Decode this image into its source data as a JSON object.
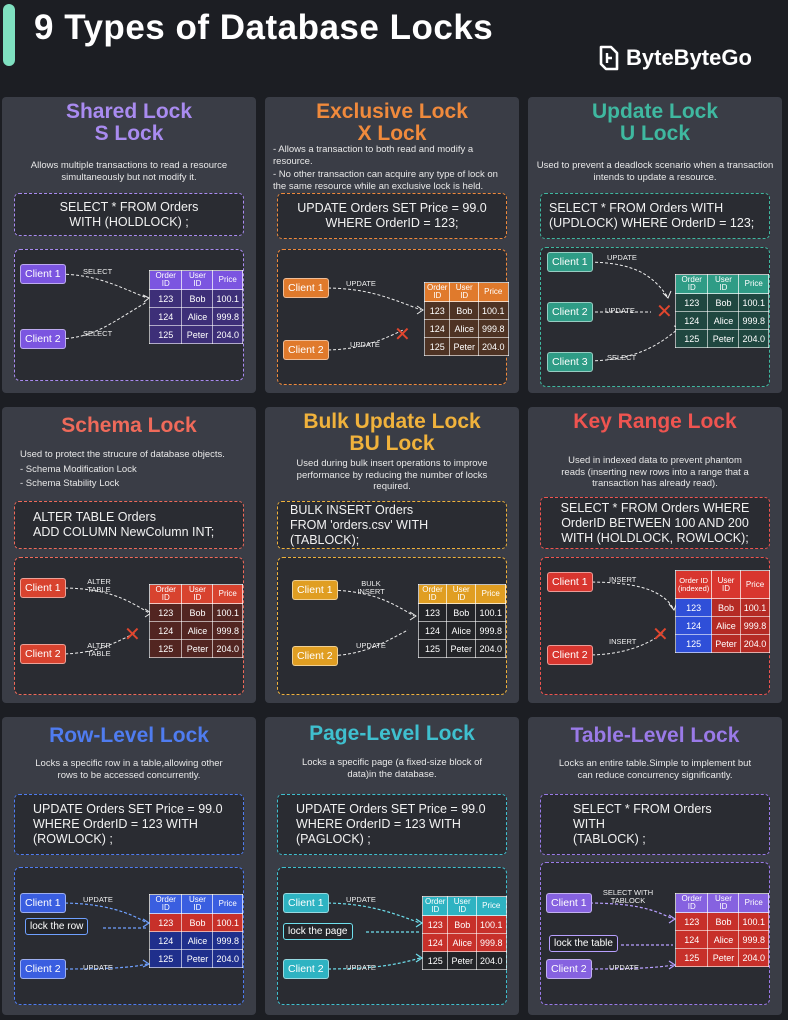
{
  "title": "9 Types of Database Locks",
  "brand": "ByteByteGo",
  "table": {
    "headers": [
      "Order ID",
      "User ID",
      "Price"
    ],
    "rows": [
      [
        "123",
        "Bob",
        "100.1"
      ],
      [
        "124",
        "Alice",
        "999.8"
      ],
      [
        "125",
        "Peter",
        "204.0"
      ]
    ]
  },
  "keyrange_header": "Order ID (indexed)",
  "cards": {
    "shared": {
      "title1": "Shared Lock",
      "title2": "S Lock",
      "desc": "Allows multiple transactions to read a resource simultaneously but not modify it.",
      "code1": "SELECT * FROM Orders",
      "code2": "WITH (HOLDLOCK) ;",
      "client1": "Client 1",
      "client2": "Client 2",
      "act1": "SELECT",
      "act2": "SELECT"
    },
    "exclusive": {
      "title1": "Exclusive Lock",
      "title2": "X Lock",
      "desc1": "- Allows a transaction to both read and modify a resource.",
      "desc2": "- No other transaction can acquire any type of lock on the same resource while an exclusive lock is held.",
      "code1": "UPDATE Orders SET Price = 99.0",
      "code2": "WHERE OrderID = 123;",
      "client1": "Client 1",
      "client2": "Client 2",
      "act1": "UPDATE",
      "act2": "UPDATE"
    },
    "update": {
      "title1": "Update Lock",
      "title2": "U Lock",
      "desc": "Used to prevent a deadlock scenario when a transaction intends to update a resource.",
      "code1": "SELECT * FROM Orders WITH",
      "code2": "(UPDLOCK) WHERE OrderID = 123;",
      "client1": "Client 1",
      "client2": "Client 2",
      "client3": "Client 3",
      "act1": "UPDATE",
      "act2": "UPDATE",
      "act3": "SELECT"
    },
    "schema": {
      "title1": "Schema Lock",
      "desc1": "Used to protect the strucure of database objects.",
      "desc2": "- Schema Modification Lock",
      "desc3": "- Schema Stability Lock",
      "code1": "ALTER TABLE Orders",
      "code2": "ADD COLUMN NewColumn INT;",
      "client1": "Client 1",
      "client2": "Client 2",
      "act1": "ALTER TABLE",
      "act2": "ALTER TABLE"
    },
    "bulk": {
      "title1": "Bulk Update Lock",
      "title2": "BU Lock",
      "desc": "Used during bulk insert operations to improve performance by reducing the number of locks required.",
      "code1": "BULK INSERT Orders",
      "code2": "FROM 'orders.csv' WITH (TABLOCK);",
      "client1": "Client 1",
      "client2": "Client 2",
      "act1": "BULK INSERT",
      "act2": "UPDATE"
    },
    "keyrange": {
      "title1": "Key Range Lock",
      "desc": "Used in indexed data to prevent phantom reads (inserting new rows into a range that a transaction has already read).",
      "code1": "SELECT * FROM Orders WHERE",
      "code2": "OrderID BETWEEN 100 AND 200",
      "code3": "WITH (HOLDLOCK, ROWLOCK);",
      "client1": "Client 1",
      "client2": "Client 2",
      "act1": "INSERT",
      "act2": "INSERT"
    },
    "row": {
      "title1": "Row-Level Lock",
      "desc": "Locks a specific row in a table,allowing other rows to be accessed concurrently.",
      "code1": "UPDATE Orders SET Price = 99.0",
      "code2": "WHERE OrderID = 123 WITH",
      "code3": "(ROWLOCK) ;",
      "client1": "Client 1",
      "client2": "Client 2",
      "act1": "UPDATE",
      "act2": "UPDATE",
      "lock": "lock the row"
    },
    "page": {
      "title1": "Page-Level Lock",
      "desc": "Locks a specific page (a fixed-size block of data)in the database.",
      "code1": "UPDATE Orders SET Price = 99.0",
      "code2": "WHERE OrderID = 123 WITH",
      "code3": "(PAGLOCK) ;",
      "client1": "Client 1",
      "client2": "Client 2",
      "act1": "UPDATE",
      "act2": "UPDATE",
      "lock": "lock the page"
    },
    "tablelvl": {
      "title1": "Table-Level Lock",
      "desc": "Locks an entire table.Simple to implement but can reduce concurrency significantly.",
      "code1": "SELECT * FROM Orders WITH",
      "code2": "(TABLOCK) ;",
      "client1": "Client 1",
      "client2": "Client 2",
      "act1": "SELECT WITH TABLOCK",
      "act2": "UPDATE",
      "lock": "lock the table"
    }
  },
  "colors": {
    "shared": "#a98bf0",
    "exclusive": "#f08a3c",
    "update": "#3fb8a0",
    "schema": "#ef6a5a",
    "bulk": "#f0b23c",
    "keyrange": "#ef5450",
    "row": "#4f7cf0",
    "page": "#3fc0cf",
    "tablelvl": "#9a7ae8"
  }
}
